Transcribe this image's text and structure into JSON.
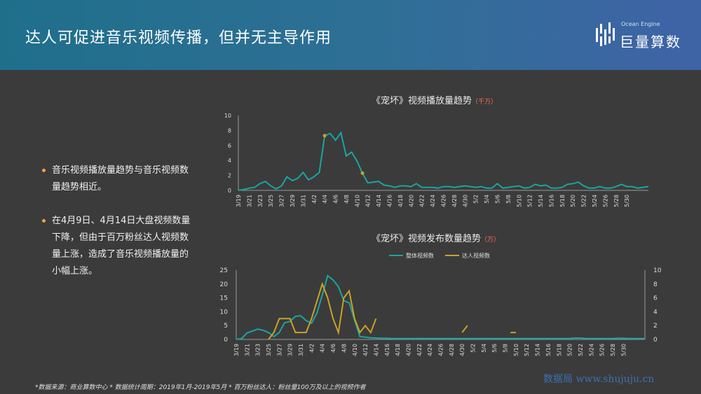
{
  "header": {
    "title": "达人可促进音乐视频传播，但并无主导作用",
    "logo_text": "巨量算数",
    "logo_sub": "Ocean Engine"
  },
  "bullets": [
    "音乐视频播放量趋势与音乐视频数量趋势相近。",
    "在4月9日、4月14日大盘视频数量下降，但由于百万粉丝达人视频数量上涨，造成了音乐视频播放量的小幅上涨。"
  ],
  "footnote": "*数据来源：商业算数中心 * 数据统计周期：2019年1月-2019年5月 * 百万粉丝达人：粉丝量100万及以上的视频作者",
  "watermark": "数据局  www.shujuju.cn",
  "colors": {
    "teal": "#1aa5a0",
    "gold": "#c9a227",
    "axis": "#9a9a9a"
  },
  "chart_data": [
    {
      "type": "line",
      "title": "《宠坏》视频播放量趋势",
      "unit": "（千万）",
      "x_start": "3/19",
      "x_ticks": [
        "3/19",
        "3/21",
        "3/23",
        "3/25",
        "3/27",
        "3/29",
        "3/31",
        "4/2",
        "4/4",
        "4/6",
        "4/8",
        "4/10",
        "4/12",
        "4/14",
        "4/16",
        "4/18",
        "4/20",
        "4/22",
        "4/24",
        "4/26",
        "4/28",
        "4/30",
        "5/2",
        "5/4",
        "5/6",
        "5/8",
        "5/10",
        "5/12",
        "5/14",
        "5/16",
        "5/18",
        "5/20",
        "5/22",
        "5/24",
        "5/26",
        "5/28",
        "5/30"
      ],
      "ylim": [
        0,
        10
      ],
      "y_ticks": [
        0,
        2,
        4,
        6,
        8,
        10
      ],
      "series": [
        {
          "values": [
            0,
            0.1,
            0.3,
            0.4,
            0.9,
            1.2,
            0.6,
            0.2,
            0.6,
            1.8,
            1.3,
            1.6,
            2.4,
            1.4,
            1.8,
            2.4,
            7.3,
            7.6,
            6.7,
            7.7,
            4.6,
            5.1,
            3.9,
            2.3,
            1.0,
            1.1,
            1.2,
            0.7,
            0.6,
            0.4,
            0.6,
            0.6,
            0.5,
            0.9,
            0.4,
            0.4,
            0.4,
            0.3,
            0.5,
            0.5,
            0.4,
            0.5,
            0.6,
            0.5,
            0.4,
            0.5,
            0.3,
            0.3,
            0.9,
            0.3,
            0.4,
            0.5,
            0.6,
            0.3,
            0.4,
            0.8,
            0.6,
            0.7,
            0.3,
            0.3,
            0.4,
            0.8,
            0.9,
            1.1,
            0.6,
            0.3,
            0.3,
            0.5,
            0.3,
            0.3,
            0.5,
            0.8,
            0.5,
            0.5,
            0.3,
            0.4,
            0.5
          ]
        }
      ],
      "markers": [
        {
          "x": "4/4",
          "y": 7.3
        },
        {
          "x": "4/11",
          "y": 2.3
        }
      ]
    },
    {
      "type": "line",
      "title": "《宠坏》视频发布数量趋势",
      "unit": "（万）",
      "x_start": "3/19",
      "x_ticks": [
        "3/19",
        "3/21",
        "3/23",
        "3/25",
        "3/27",
        "3/29",
        "3/31",
        "4/2",
        "4/4",
        "4/6",
        "4/8",
        "4/10",
        "4/12",
        "4/14",
        "4/16",
        "4/18",
        "4/20",
        "4/22",
        "4/24",
        "4/26",
        "4/28",
        "4/30",
        "5/2",
        "5/4",
        "5/6",
        "5/8",
        "5/10",
        "5/12",
        "5/14",
        "5/16",
        "5/18",
        "5/20",
        "5/22",
        "5/24",
        "5/26",
        "5/28",
        "5/30"
      ],
      "ylim": [
        0,
        25
      ],
      "y_ticks": [
        0,
        5,
        10,
        15,
        20,
        25
      ],
      "y2lim": [
        0,
        10
      ],
      "y2_ticks": [
        0,
        2,
        4,
        6,
        8,
        10
      ],
      "legend": [
        "整体视频数",
        "达人视频数"
      ],
      "series": [
        {
          "name": "整体视频数",
          "axis": "left",
          "values": [
            0,
            0.3,
            2.3,
            3.0,
            3.7,
            3.3,
            2.5,
            1.0,
            2.5,
            6.0,
            6.5,
            8.3,
            8.5,
            6.8,
            5.8,
            9.5,
            16.0,
            23.0,
            21.5,
            19.0,
            14.0,
            13.2,
            7.0,
            1.0,
            0.8,
            0.6,
            0.5,
            0.4,
            0.4,
            0.3,
            0.3,
            0.3,
            0.3,
            0.3,
            0.3,
            0.3,
            0.3,
            0.3,
            0.3,
            0.3,
            0.3,
            0.3,
            0.3,
            0.3,
            0.3,
            0.3,
            0.3,
            0.3,
            0.3,
            0.3,
            0.3,
            0.3,
            0.3,
            0.3,
            0.3,
            0.3,
            0.3,
            0.3,
            0.3,
            0.3,
            0.3,
            0.3,
            0.3,
            0.5,
            0.5,
            0.3,
            0.3,
            0.3,
            0.3,
            0.3,
            0.3,
            0.4,
            0.4,
            0.3,
            0.3,
            0.3,
            0.3
          ]
        },
        {
          "name": "达人视频数",
          "axis": "right",
          "values": [
            null,
            null,
            null,
            null,
            null,
            null,
            0,
            1,
            3,
            3,
            3,
            1,
            1,
            1,
            3,
            5.5,
            8,
            6,
            3,
            1,
            6,
            7,
            3,
            1,
            2,
            1,
            3,
            null,
            null,
            null,
            null,
            null,
            null,
            null,
            null,
            null,
            null,
            null,
            null,
            null,
            null,
            null,
            null,
            null,
            null,
            null,
            null,
            null,
            null,
            null,
            null,
            null,
            null,
            null,
            null,
            null,
            null,
            null,
            null,
            null,
            null,
            null,
            null,
            null,
            null,
            null,
            null,
            null,
            null,
            null,
            null,
            null,
            null,
            null,
            null,
            null,
            null
          ],
          "extra_segments": [
            {
              "x_index": [
                42,
                43
              ],
              "values": [
                1,
                2
              ]
            },
            {
              "x_index": [
                51,
                52
              ],
              "values": [
                1,
                1
              ]
            }
          ]
        }
      ]
    }
  ]
}
